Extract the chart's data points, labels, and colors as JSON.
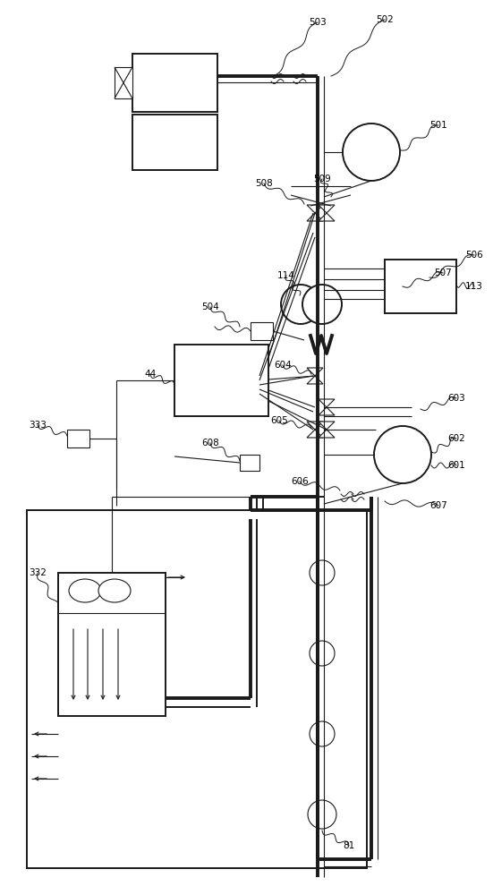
{
  "bg": "#ffffff",
  "figsize": [
    5.51,
    10.0
  ],
  "dpi": 100,
  "lw_thin": 0.8,
  "lw_med": 1.4,
  "lw_thick": 2.8
}
